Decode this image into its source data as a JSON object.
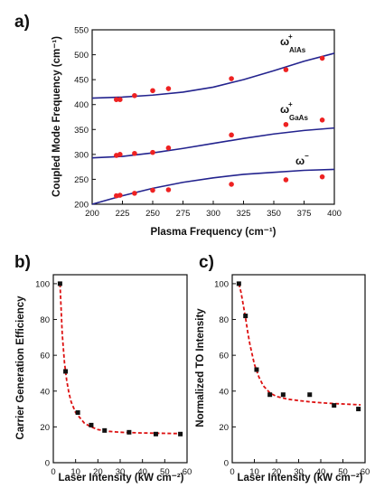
{
  "panels": {
    "a": {
      "label": "a)"
    },
    "b": {
      "label": "b)"
    },
    "c": {
      "label": "c)"
    }
  },
  "colors": {
    "curve_blue": "#23238e",
    "point_red": "#ee2222",
    "point_black": "#111111",
    "fit_red": "#dd1111"
  },
  "chart_data": [
    {
      "id": "a",
      "type": "scatter",
      "title": "",
      "xlabel": "Plasma Frequency (cm⁻¹)",
      "ylabel": "Coupled Mode Frequency (cm⁻¹)",
      "xlim": [
        200,
        400
      ],
      "ylim": [
        200,
        550
      ],
      "xticks": [
        200,
        225,
        250,
        275,
        300,
        325,
        350,
        375,
        400
      ],
      "yticks": [
        200,
        250,
        300,
        350,
        400,
        450,
        500,
        550
      ],
      "annotations": [
        {
          "text": "ω",
          "sup": "+",
          "sub": "AlAs"
        },
        {
          "text": "ω",
          "sup": "+",
          "sub": "GaAs"
        },
        {
          "text": "ω",
          "sup": "−",
          "sub": ""
        }
      ],
      "series": [
        {
          "points": [
            [
              220,
              410
            ],
            [
              223,
              410
            ],
            [
              235,
              418
            ],
            [
              250,
              428
            ],
            [
              263,
              432
            ],
            [
              315,
              452
            ],
            [
              360,
              470
            ],
            [
              390,
              493
            ]
          ]
        },
        {
          "points": [
            [
              220,
              298
            ],
            [
              223,
              300
            ],
            [
              235,
              302
            ],
            [
              250,
              304
            ],
            [
              263,
              313
            ],
            [
              315,
              339
            ],
            [
              360,
              360
            ],
            [
              390,
              369
            ]
          ]
        },
        {
          "points": [
            [
              220,
              217
            ],
            [
              223,
              218
            ],
            [
              235,
              222
            ],
            [
              250,
              228
            ],
            [
              263,
              229
            ],
            [
              315,
              240
            ],
            [
              360,
              249
            ],
            [
              390,
              255
            ]
          ]
        }
      ],
      "curves": [
        {
          "x": [
            200,
            225,
            250,
            275,
            300,
            325,
            350,
            375,
            400
          ],
          "y": [
            413,
            415,
            419,
            425,
            435,
            450,
            468,
            487,
            503
          ]
        },
        {
          "x": [
            200,
            225,
            250,
            275,
            300,
            325,
            350,
            375,
            400
          ],
          "y": [
            293,
            296,
            303,
            312,
            322,
            332,
            341,
            348,
            353
          ]
        },
        {
          "x": [
            200,
            225,
            250,
            275,
            300,
            325,
            350,
            375,
            400
          ],
          "y": [
            200,
            217,
            232,
            244,
            253,
            260,
            264,
            268,
            270
          ]
        }
      ]
    },
    {
      "id": "b",
      "type": "scatter",
      "title": "",
      "xlabel": "Laser Intensity (kW cm⁻²)",
      "ylabel": "Carrier Generation Efficiency",
      "xlim": [
        0,
        60
      ],
      "ylim": [
        0,
        105
      ],
      "xticks": [
        0,
        10,
        20,
        30,
        40,
        50,
        60
      ],
      "yticks": [
        0,
        20,
        40,
        60,
        80,
        100
      ],
      "points": [
        [
          3,
          100
        ],
        [
          5.5,
          51
        ],
        [
          11,
          28
        ],
        [
          17,
          21
        ],
        [
          23,
          18
        ],
        [
          34,
          17
        ],
        [
          46,
          16
        ],
        [
          57,
          16
        ]
      ],
      "fit": {
        "x": [
          3,
          4,
          5,
          6,
          7,
          8,
          10,
          12,
          14,
          17,
          20,
          25,
          30,
          35,
          40,
          45,
          50,
          55,
          58
        ],
        "y": [
          100,
          72,
          56,
          46,
          39,
          34,
          28,
          25,
          22,
          20,
          18.5,
          17.5,
          17,
          16.8,
          16.6,
          16.5,
          16.4,
          16.3,
          16.3
        ]
      }
    },
    {
      "id": "c",
      "type": "scatter",
      "title": "",
      "xlabel": "Laser Intensity (kW cm⁻²)",
      "ylabel": "Normalized TO Intensity",
      "xlim": [
        0,
        60
      ],
      "ylim": [
        0,
        105
      ],
      "xticks": [
        0,
        10,
        20,
        30,
        40,
        50,
        60
      ],
      "yticks": [
        0,
        20,
        40,
        60,
        80,
        100
      ],
      "points": [
        [
          3,
          100
        ],
        [
          6,
          82
        ],
        [
          11,
          52
        ],
        [
          17,
          38
        ],
        [
          23,
          38
        ],
        [
          35,
          38
        ],
        [
          46,
          32
        ],
        [
          57,
          30
        ]
      ],
      "fit": {
        "x": [
          3,
          4,
          5,
          6,
          7,
          8,
          10,
          12,
          14,
          17,
          20,
          25,
          30,
          35,
          40,
          45,
          50,
          55,
          58
        ],
        "y": [
          100,
          95,
          88,
          81,
          73,
          66,
          55,
          48,
          43,
          39,
          37,
          35.5,
          34.7,
          34,
          33.5,
          33.1,
          32.8,
          32.5,
          32.3
        ]
      }
    }
  ]
}
